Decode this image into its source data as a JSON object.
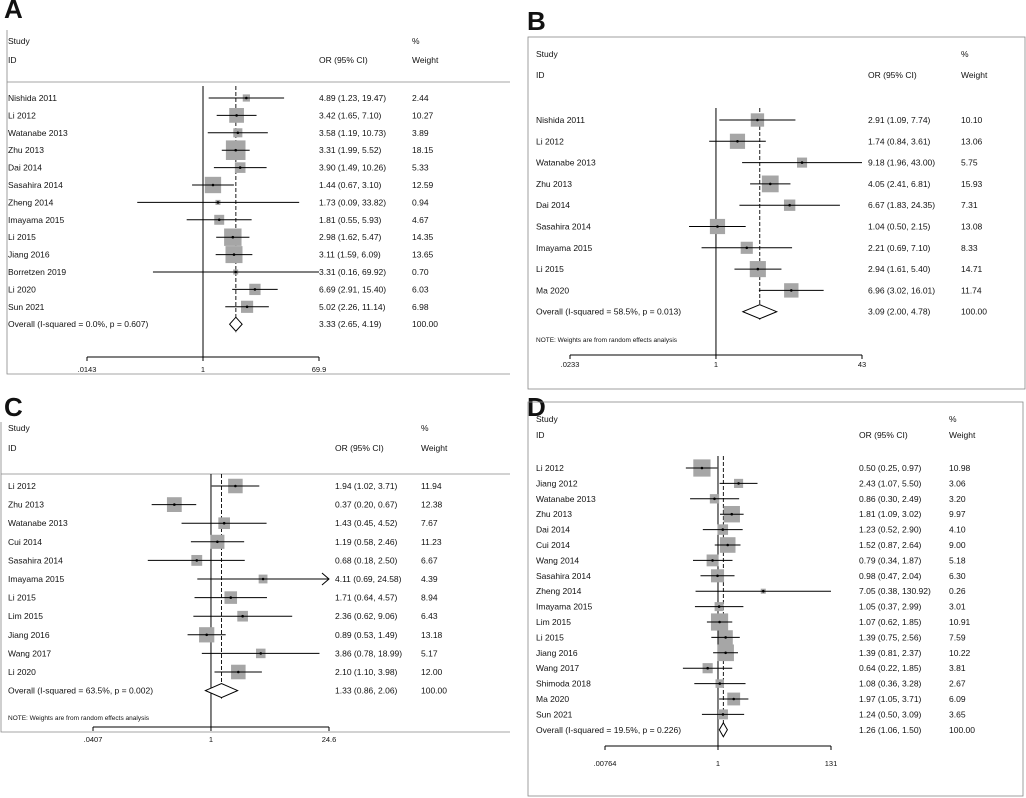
{
  "figure": {
    "panels": [
      {
        "letter": "A",
        "header_study": "Study",
        "header_id": "ID",
        "header_or": "OR (95% CI)",
        "header_pct": "%",
        "header_weight": "Weight",
        "overall_label": "Overall  (I-squared = 0.0%, p = 0.607)",
        "overall_ci_text": "3.33 (2.65, 4.19)",
        "overall_weight": "100.00",
        "note": "",
        "axis_ticks": [
          ".0143",
          "1",
          "69.9"
        ]
      },
      {
        "letter": "B",
        "header_study": "Study",
        "header_id": "ID",
        "header_or": "OR (95% CI)",
        "header_pct": "%",
        "header_weight": "Weight",
        "overall_label": "Overall  (I-squared = 58.5%, p = 0.013)",
        "overall_ci_text": "3.09 (2.00, 4.78)",
        "overall_weight": "100.00",
        "note": "NOTE: Weights are from random effects analysis",
        "axis_ticks": [
          ".0233",
          "1",
          "43"
        ]
      },
      {
        "letter": "C",
        "header_study": "Study",
        "header_id": "ID",
        "header_or": "OR (95% CI)",
        "header_pct": "%",
        "header_weight": "Weight",
        "overall_label": "Overall  (I-squared = 63.5%, p = 0.002)",
        "overall_ci_text": "1.33 (0.86, 2.06)",
        "overall_weight": "100.00",
        "note": "NOTE: Weights are from random effects analysis",
        "axis_ticks": [
          ".0407",
          "1",
          "24.6"
        ]
      },
      {
        "letter": "D",
        "header_study": "Study",
        "header_id": "ID",
        "header_or": "OR (95% CI)",
        "header_pct": "%",
        "header_weight": "Weight",
        "overall_label": "Overall  (I-squared = 19.5%, p = 0.226)",
        "overall_ci_text": "1.26 (1.06, 1.50)",
        "overall_weight": "100.00",
        "note": "",
        "axis_ticks": [
          ".00764",
          "1",
          "131"
        ]
      }
    ]
  },
  "chart_data": [
    {
      "type": "forest",
      "title": "A",
      "xscale": "log",
      "xlim": [
        0.0143,
        69.9
      ],
      "null_line": 1,
      "studies": [
        {
          "name": "Nishida 2011",
          "or": 4.89,
          "lo": 1.23,
          "hi": 19.47,
          "ci_text": "4.89 (1.23, 19.47)",
          "weight": 2.44,
          "weight_text": "2.44"
        },
        {
          "name": "Li 2012",
          "or": 3.42,
          "lo": 1.65,
          "hi": 7.1,
          "ci_text": "3.42 (1.65, 7.10)",
          "weight": 10.27,
          "weight_text": "10.27"
        },
        {
          "name": "Watanabe 2013",
          "or": 3.58,
          "lo": 1.19,
          "hi": 10.73,
          "ci_text": "3.58 (1.19, 10.73)",
          "weight": 3.89,
          "weight_text": "3.89"
        },
        {
          "name": "Zhu 2013",
          "or": 3.31,
          "lo": 1.99,
          "hi": 5.52,
          "ci_text": "3.31 (1.99, 5.52)",
          "weight": 18.15,
          "weight_text": "18.15"
        },
        {
          "name": "Dai 2014",
          "or": 3.9,
          "lo": 1.49,
          "hi": 10.26,
          "ci_text": "3.90 (1.49, 10.26)",
          "weight": 5.33,
          "weight_text": "5.33"
        },
        {
          "name": "Sasahira 2014",
          "or": 1.44,
          "lo": 0.67,
          "hi": 3.1,
          "ci_text": "1.44 (0.67, 3.10)",
          "weight": 12.59,
          "weight_text": "12.59"
        },
        {
          "name": "Zheng 2014",
          "or": 1.73,
          "lo": 0.09,
          "hi": 33.82,
          "ci_text": "1.73 (0.09, 33.82)",
          "weight": 0.94,
          "weight_text": "0.94"
        },
        {
          "name": "Imayama 2015",
          "or": 1.81,
          "lo": 0.55,
          "hi": 5.93,
          "ci_text": "1.81 (0.55, 5.93)",
          "weight": 4.67,
          "weight_text": "4.67"
        },
        {
          "name": "Li 2015",
          "or": 2.98,
          "lo": 1.62,
          "hi": 5.47,
          "ci_text": "2.98 (1.62, 5.47)",
          "weight": 14.35,
          "weight_text": "14.35"
        },
        {
          "name": "Jiang 2016",
          "or": 3.11,
          "lo": 1.59,
          "hi": 6.09,
          "ci_text": "3.11 (1.59, 6.09)",
          "weight": 13.65,
          "weight_text": "13.65"
        },
        {
          "name": "Borretzen 2019",
          "or": 3.31,
          "lo": 0.16,
          "hi": 69.92,
          "ci_text": "3.31 (0.16, 69.92)",
          "weight": 0.7,
          "weight_text": "0.70"
        },
        {
          "name": "Li 2020",
          "or": 6.69,
          "lo": 2.91,
          "hi": 15.4,
          "ci_text": "6.69 (2.91, 15.40)",
          "weight": 6.03,
          "weight_text": "6.03"
        },
        {
          "name": "Sun 2021",
          "or": 5.02,
          "lo": 2.26,
          "hi": 11.14,
          "ci_text": "5.02 (2.26, 11.14)",
          "weight": 6.98,
          "weight_text": "6.98"
        }
      ],
      "overall": {
        "or": 3.33,
        "lo": 2.65,
        "hi": 4.19,
        "i_squared": "0.0%",
        "p": 0.607
      }
    },
    {
      "type": "forest",
      "title": "B",
      "xscale": "log",
      "xlim": [
        0.0233,
        43
      ],
      "null_line": 1,
      "studies": [
        {
          "name": "Nishida 2011",
          "or": 2.91,
          "lo": 1.09,
          "hi": 7.74,
          "ci_text": "2.91 (1.09, 7.74)",
          "weight": 10.1,
          "weight_text": "10.10"
        },
        {
          "name": "Li 2012",
          "or": 1.74,
          "lo": 0.84,
          "hi": 3.61,
          "ci_text": "1.74 (0.84, 3.61)",
          "weight": 13.06,
          "weight_text": "13.06"
        },
        {
          "name": "Watanabe 2013",
          "or": 9.18,
          "lo": 1.96,
          "hi": 43.0,
          "ci_text": "9.18 (1.96, 43.00)",
          "weight": 5.75,
          "weight_text": "5.75"
        },
        {
          "name": "Zhu 2013",
          "or": 4.05,
          "lo": 2.41,
          "hi": 6.81,
          "ci_text": "4.05 (2.41, 6.81)",
          "weight": 15.93,
          "weight_text": "15.93"
        },
        {
          "name": "Dai 2014",
          "or": 6.67,
          "lo": 1.83,
          "hi": 24.35,
          "ci_text": "6.67 (1.83, 24.35)",
          "weight": 7.31,
          "weight_text": "7.31"
        },
        {
          "name": "Sasahira 2014",
          "or": 1.04,
          "lo": 0.5,
          "hi": 2.15,
          "ci_text": "1.04 (0.50, 2.15)",
          "weight": 13.08,
          "weight_text": "13.08"
        },
        {
          "name": "Imayama 2015",
          "or": 2.21,
          "lo": 0.69,
          "hi": 7.1,
          "ci_text": "2.21 (0.69, 7.10)",
          "weight": 8.33,
          "weight_text": "8.33"
        },
        {
          "name": "Li 2015",
          "or": 2.94,
          "lo": 1.61,
          "hi": 5.4,
          "ci_text": "2.94 (1.61, 5.40)",
          "weight": 14.71,
          "weight_text": "14.71"
        },
        {
          "name": "Ma 2020",
          "or": 6.96,
          "lo": 3.02,
          "hi": 16.01,
          "ci_text": "6.96 (3.02, 16.01)",
          "weight": 11.74,
          "weight_text": "11.74"
        }
      ],
      "overall": {
        "or": 3.09,
        "lo": 2.0,
        "hi": 4.78,
        "i_squared": "58.5%",
        "p": 0.013
      }
    },
    {
      "type": "forest",
      "title": "C",
      "xscale": "log",
      "xlim": [
        0.0407,
        24.6
      ],
      "null_line": 1,
      "studies": [
        {
          "name": "Li 2012",
          "or": 1.94,
          "lo": 1.02,
          "hi": 3.71,
          "ci_text": "1.94 (1.02, 3.71)",
          "weight": 11.94,
          "weight_text": "11.94"
        },
        {
          "name": "Zhu 2013",
          "or": 0.37,
          "lo": 0.2,
          "hi": 0.67,
          "ci_text": "0.37 (0.20, 0.67)",
          "weight": 12.38,
          "weight_text": "12.38"
        },
        {
          "name": "Watanabe 2013",
          "or": 1.43,
          "lo": 0.45,
          "hi": 4.52,
          "ci_text": "1.43 (0.45, 4.52)",
          "weight": 7.67,
          "weight_text": "7.67"
        },
        {
          "name": "Cui 2014",
          "or": 1.19,
          "lo": 0.58,
          "hi": 2.46,
          "ci_text": "1.19 (0.58, 2.46)",
          "weight": 11.23,
          "weight_text": "11.23"
        },
        {
          "name": "Sasahira 2014",
          "or": 0.68,
          "lo": 0.18,
          "hi": 2.5,
          "ci_text": "0.68 (0.18, 2.50)",
          "weight": 6.67,
          "weight_text": "6.67"
        },
        {
          "name": "Imayama 2015",
          "or": 4.11,
          "lo": 0.69,
          "hi": 24.58,
          "ci_text": "4.11 (0.69, 24.58)",
          "weight": 4.39,
          "weight_text": "4.39",
          "arrow_right": true
        },
        {
          "name": "Li 2015",
          "or": 1.71,
          "lo": 0.64,
          "hi": 4.57,
          "ci_text": "1.71 (0.64, 4.57)",
          "weight": 8.94,
          "weight_text": "8.94"
        },
        {
          "name": "Lim 2015",
          "or": 2.36,
          "lo": 0.62,
          "hi": 9.06,
          "ci_text": "2.36 (0.62, 9.06)",
          "weight": 6.43,
          "weight_text": "6.43"
        },
        {
          "name": "Jiang 2016",
          "or": 0.89,
          "lo": 0.53,
          "hi": 1.49,
          "ci_text": "0.89 (0.53, 1.49)",
          "weight": 13.18,
          "weight_text": "13.18"
        },
        {
          "name": "Wang 2017",
          "or": 3.86,
          "lo": 0.78,
          "hi": 18.99,
          "ci_text": "3.86 (0.78, 18.99)",
          "weight": 5.17,
          "weight_text": "5.17"
        },
        {
          "name": "Li 2020",
          "or": 2.1,
          "lo": 1.1,
          "hi": 3.98,
          "ci_text": "2.10 (1.10, 3.98)",
          "weight": 12.0,
          "weight_text": "12.00"
        }
      ],
      "overall": {
        "or": 1.33,
        "lo": 0.86,
        "hi": 2.06,
        "i_squared": "63.5%",
        "p": 0.002
      }
    },
    {
      "type": "forest",
      "title": "D",
      "xscale": "log",
      "xlim": [
        0.00764,
        131
      ],
      "null_line": 1,
      "studies": [
        {
          "name": "Li 2012",
          "or": 0.5,
          "lo": 0.25,
          "hi": 0.97,
          "ci_text": "0.50 (0.25, 0.97)",
          "weight": 10.98,
          "weight_text": "10.98"
        },
        {
          "name": "Jiang 2012",
          "or": 2.43,
          "lo": 1.07,
          "hi": 5.5,
          "ci_text": "2.43 (1.07, 5.50)",
          "weight": 3.06,
          "weight_text": "3.06"
        },
        {
          "name": "Watanabe 2013",
          "or": 0.86,
          "lo": 0.3,
          "hi": 2.49,
          "ci_text": "0.86 (0.30, 2.49)",
          "weight": 3.2,
          "weight_text": "3.20"
        },
        {
          "name": "Zhu 2013",
          "or": 1.81,
          "lo": 1.09,
          "hi": 3.02,
          "ci_text": "1.81 (1.09, 3.02)",
          "weight": 9.97,
          "weight_text": "9.97"
        },
        {
          "name": "Dai 2014",
          "or": 1.23,
          "lo": 0.52,
          "hi": 2.9,
          "ci_text": "1.23 (0.52, 2.90)",
          "weight": 4.1,
          "weight_text": "4.10"
        },
        {
          "name": "Cui 2014",
          "or": 1.52,
          "lo": 0.87,
          "hi": 2.64,
          "ci_text": "1.52 (0.87, 2.64)",
          "weight": 9.0,
          "weight_text": "9.00"
        },
        {
          "name": "Wang 2014",
          "or": 0.79,
          "lo": 0.34,
          "hi": 1.87,
          "ci_text": "0.79 (0.34, 1.87)",
          "weight": 5.18,
          "weight_text": "5.18"
        },
        {
          "name": "Sasahira 2014",
          "or": 0.98,
          "lo": 0.47,
          "hi": 2.04,
          "ci_text": "0.98 (0.47, 2.04)",
          "weight": 6.3,
          "weight_text": "6.30"
        },
        {
          "name": "Zheng 2014",
          "or": 7.05,
          "lo": 0.38,
          "hi": 130.92,
          "ci_text": "7.05 (0.38, 130.92)",
          "weight": 0.26,
          "weight_text": "0.26"
        },
        {
          "name": "Imayama 2015",
          "or": 1.05,
          "lo": 0.37,
          "hi": 2.99,
          "ci_text": "1.05 (0.37, 2.99)",
          "weight": 3.01,
          "weight_text": "3.01"
        },
        {
          "name": "Lim 2015",
          "or": 1.07,
          "lo": 0.62,
          "hi": 1.85,
          "ci_text": "1.07 (0.62, 1.85)",
          "weight": 10.91,
          "weight_text": "10.91"
        },
        {
          "name": "Li 2015",
          "or": 1.39,
          "lo": 0.75,
          "hi": 2.56,
          "ci_text": "1.39 (0.75, 2.56)",
          "weight": 7.59,
          "weight_text": "7.59"
        },
        {
          "name": "Jiang 2016",
          "or": 1.39,
          "lo": 0.81,
          "hi": 2.37,
          "ci_text": "1.39 (0.81, 2.37)",
          "weight": 10.22,
          "weight_text": "10.22"
        },
        {
          "name": "Wang 2017",
          "or": 0.64,
          "lo": 0.22,
          "hi": 1.85,
          "ci_text": "0.64 (0.22, 1.85)",
          "weight": 3.81,
          "weight_text": "3.81"
        },
        {
          "name": "Shimoda 2018",
          "or": 1.08,
          "lo": 0.36,
          "hi": 3.28,
          "ci_text": "1.08 (0.36, 3.28)",
          "weight": 2.67,
          "weight_text": "2.67"
        },
        {
          "name": "Ma 2020",
          "or": 1.97,
          "lo": 1.05,
          "hi": 3.71,
          "ci_text": "1.97 (1.05, 3.71)",
          "weight": 6.09,
          "weight_text": "6.09"
        },
        {
          "name": "Sun 2021",
          "or": 1.24,
          "lo": 0.5,
          "hi": 3.09,
          "ci_text": "1.24 (0.50, 3.09)",
          "weight": 3.65,
          "weight_text": "3.65"
        }
      ],
      "overall": {
        "or": 1.26,
        "lo": 1.06,
        "hi": 1.5,
        "i_squared": "19.5%",
        "p": 0.226
      }
    }
  ]
}
